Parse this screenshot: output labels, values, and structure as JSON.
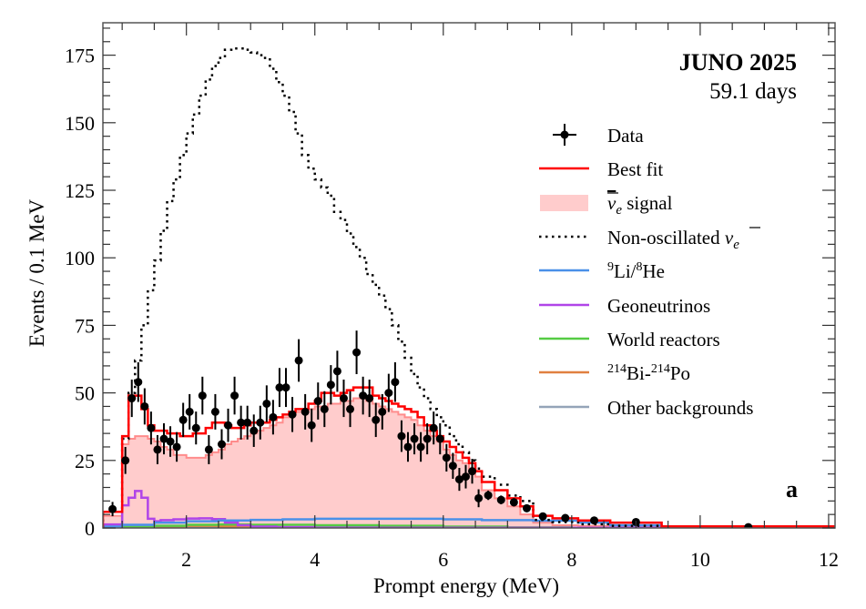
{
  "chart_data": {
    "type": "histogram",
    "title": "JUNO 2025",
    "subtitle": "59.1 days",
    "panel_label": "a",
    "xlabel": "Prompt energy (MeV)",
    "ylabel": "Events / 0.1 MeV",
    "xlim": [
      0.7,
      12.1
    ],
    "ylim": [
      0,
      187
    ],
    "xticks": [
      2,
      4,
      6,
      8,
      10,
      12
    ],
    "yticks": [
      0,
      25,
      50,
      75,
      100,
      125,
      150,
      175
    ],
    "grid": false,
    "legend_position": "right",
    "legend": {
      "data": "Data",
      "best_fit": "Best fit",
      "signal": {
        "symbol": "ν",
        "sub": "e",
        "text": " signal"
      },
      "nonosc": {
        "text": "Non-oscillated ",
        "symbol": "ν",
        "sub": "e"
      },
      "lihe": {
        "sup1": "9",
        "t1": "Li/",
        "sup2": "8",
        "t2": "He"
      },
      "geo": "Geoneutrinos",
      "world": "World reactors",
      "bipo": {
        "sup1": "214",
        "t1": "Bi-",
        "sup2": "214",
        "t2": "Po"
      },
      "other": "Other backgrounds"
    },
    "colors": {
      "data": "#000000",
      "best_fit": "#ff0000",
      "signal_fill": "#ffcccc",
      "signal_line": "#ff8c8c",
      "nonosc": "#000000",
      "lihe": "#4a90e8",
      "geo": "#b044e8",
      "world": "#55cc44",
      "bipo": "#e08040",
      "other": "#94a4b8"
    },
    "bin_edges": [
      0.7,
      1.0,
      1.1,
      1.2,
      1.3,
      1.4,
      1.5,
      1.6,
      1.7,
      1.8,
      1.9,
      2.0,
      2.1,
      2.2,
      2.3,
      2.4,
      2.5,
      2.6,
      2.7,
      2.8,
      2.9,
      3.0,
      3.1,
      3.2,
      3.3,
      3.4,
      3.5,
      3.6,
      3.7,
      3.8,
      3.9,
      4.0,
      4.1,
      4.2,
      4.3,
      4.4,
      4.5,
      4.6,
      4.7,
      4.8,
      4.9,
      5.0,
      5.1,
      5.2,
      5.3,
      5.4,
      5.5,
      5.6,
      5.7,
      5.8,
      5.9,
      6.0,
      6.1,
      6.2,
      6.3,
      6.4,
      6.5,
      6.6,
      6.8,
      7.0,
      7.2,
      7.4,
      7.7,
      8.1,
      8.6,
      9.4,
      12.1
    ],
    "series": [
      {
        "name": "Data",
        "kind": "points",
        "x": [
          0.85,
          1.05,
          1.15,
          1.25,
          1.35,
          1.45,
          1.55,
          1.65,
          1.75,
          1.85,
          1.95,
          2.05,
          2.15,
          2.25,
          2.35,
          2.45,
          2.55,
          2.65,
          2.75,
          2.85,
          2.95,
          3.05,
          3.15,
          3.25,
          3.35,
          3.45,
          3.55,
          3.65,
          3.75,
          3.85,
          3.95,
          4.05,
          4.15,
          4.25,
          4.35,
          4.45,
          4.55,
          4.65,
          4.75,
          4.85,
          4.95,
          5.05,
          5.15,
          5.25,
          5.35,
          5.45,
          5.55,
          5.65,
          5.75,
          5.85,
          5.95,
          6.05,
          6.15,
          6.25,
          6.35,
          6.45,
          6.55,
          6.7,
          6.9,
          7.1,
          7.3,
          7.55,
          7.9,
          8.35,
          9.0,
          10.75
        ],
        "y": [
          7,
          25,
          48,
          54,
          45,
          37,
          29,
          33,
          32,
          30,
          40,
          43,
          37,
          49,
          29,
          43,
          31,
          38,
          49,
          39,
          39,
          36,
          39,
          46,
          41,
          52,
          52,
          42,
          62,
          43,
          38,
          47,
          44,
          53,
          58,
          48,
          44,
          65,
          49,
          48,
          40,
          43,
          50,
          54,
          34,
          30,
          33,
          30,
          33,
          37,
          33,
          26,
          23,
          18,
          19,
          21,
          11,
          12.1,
          10.4,
          9.5,
          7.3,
          4.3,
          3.7,
          2.8,
          2.2,
          0.3
        ]
      },
      {
        "name": "Best fit",
        "kind": "step",
        "values": [
          6,
          34,
          49,
          49,
          44,
          38,
          36,
          36,
          35,
          35,
          34,
          34,
          35,
          35,
          37,
          39,
          39,
          38,
          37,
          37,
          38,
          39,
          39,
          39,
          40,
          41,
          42,
          43,
          44,
          44,
          46,
          47,
          50,
          50,
          49,
          50,
          51,
          52,
          52,
          52,
          49,
          48,
          47,
          46,
          45,
          44,
          43,
          41,
          38,
          36,
          34,
          32,
          30,
          28,
          26,
          24,
          21,
          17,
          14,
          11,
          8,
          4.5,
          3.6,
          2.8,
          2.0,
          0.6
        ]
      },
      {
        "name": "signal",
        "kind": "filled-step",
        "values": [
          4.5,
          31,
          33,
          34,
          34,
          33,
          32,
          30,
          29,
          27,
          27,
          26,
          26,
          26,
          27,
          28,
          29,
          31,
          32,
          33,
          34,
          35,
          36,
          37,
          38,
          39,
          41,
          42,
          43,
          44,
          44,
          45,
          45,
          46,
          46,
          47,
          47,
          48,
          48,
          47,
          46,
          45,
          44,
          43,
          42,
          41,
          40,
          38,
          36,
          34,
          32,
          29,
          27,
          25,
          24,
          22,
          19,
          14,
          11,
          8,
          5,
          2,
          1,
          0.8,
          0.5,
          0
        ]
      },
      {
        "name": "Non-oscillated",
        "kind": "dotted-step",
        "values": [
          6,
          33,
          50,
          62,
          75,
          88,
          99,
          110,
          121,
          129,
          138,
          146,
          153,
          160,
          166,
          171,
          174,
          177,
          177.5,
          177.5,
          177,
          176,
          175,
          174,
          170,
          165,
          160,
          154,
          146,
          138,
          133,
          129,
          126,
          123,
          117,
          114,
          109,
          104,
          100,
          94,
          90,
          86,
          81,
          75,
          69,
          63,
          57,
          52,
          48,
          44,
          41,
          38,
          34,
          31,
          28,
          25,
          22,
          19,
          16,
          12,
          10,
          3,
          2.2,
          1.4,
          0.8,
          0.1
        ]
      },
      {
        "name": "9Li/8He",
        "kind": "step",
        "edges": [
          0.7,
          1.0,
          1.5,
          2,
          2.5,
          3,
          3.5,
          4,
          5,
          6,
          6.6,
          7.4,
          8.1,
          8.6,
          9.4,
          12.1
        ],
        "values": [
          0.5,
          1.2,
          2,
          2.5,
          2.8,
          3,
          3.2,
          3.4,
          3.4,
          3.2,
          2.9,
          2.7,
          2,
          1,
          0
        ]
      },
      {
        "name": "Geoneutrinos",
        "kind": "step",
        "edges": [
          0.7,
          1.0,
          1.1,
          1.2,
          1.3,
          1.4,
          1.5,
          1.6,
          1.8,
          2.0,
          2.2,
          2.4,
          2.6,
          2.8,
          3.0,
          3.4,
          4,
          12.1
        ],
        "values": [
          1.3,
          8.4,
          11.2,
          13.7,
          11.2,
          3.4,
          2.5,
          2.9,
          3.2,
          3.5,
          3.6,
          3.3,
          2,
          1,
          0.5,
          0.3,
          0.1
        ]
      },
      {
        "name": "World reactors",
        "kind": "step",
        "edges": [
          0.7,
          1.5,
          2,
          2.5,
          3,
          4,
          5,
          6,
          7,
          8,
          12.1
        ],
        "values": [
          0.3,
          0.8,
          1.2,
          1.3,
          1.2,
          1,
          0.8,
          0.5,
          0.2,
          0
        ]
      },
      {
        "name": "214Bi-214Po",
        "kind": "step",
        "edges": [
          0.7,
          1.5,
          2,
          2.5,
          3,
          3.5,
          12.1
        ],
        "values": [
          0.2,
          0.6,
          0.8,
          0.6,
          0.3,
          0
        ]
      },
      {
        "name": "Other backgrounds",
        "kind": "step",
        "edges": [
          0.7,
          3,
          6,
          12.1
        ],
        "values": [
          0.5,
          0.3,
          0.1
        ]
      }
    ]
  }
}
